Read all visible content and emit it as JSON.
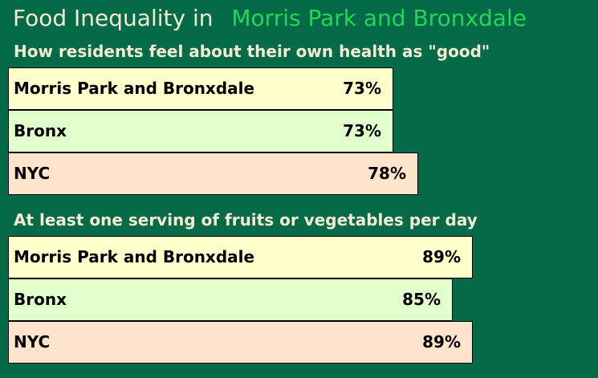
{
  "header": {
    "title_prefix": "Food Inequality in",
    "title_place": "Morris Park and Bronxdale"
  },
  "colors": {
    "background": "#046a47",
    "title_text": "#f4ecd2",
    "place_text": "#22d65a",
    "row_1": "#ffffcc",
    "row_2": "#e0ffcc",
    "row_3": "#ffe4cc"
  },
  "chart_data": [
    {
      "type": "bar",
      "orientation": "horizontal",
      "title": "How residents feel about their own health as \"good\"",
      "categories": [
        "Morris Park and Bronxdale",
        "Bronx",
        "NYC"
      ],
      "values": [
        73,
        73,
        78
      ],
      "value_labels": [
        "73%",
        "73%",
        "78%"
      ],
      "xlim": [
        0,
        100
      ]
    },
    {
      "type": "bar",
      "orientation": "horizontal",
      "title": "At least one serving of fruits or vegetables per day",
      "categories": [
        "Morris Park and Bronxdale",
        "Bronx",
        "NYC"
      ],
      "values": [
        89,
        85,
        89
      ],
      "value_labels": [
        "89%",
        "85%",
        "89%"
      ],
      "xlim": [
        0,
        100
      ]
    }
  ]
}
